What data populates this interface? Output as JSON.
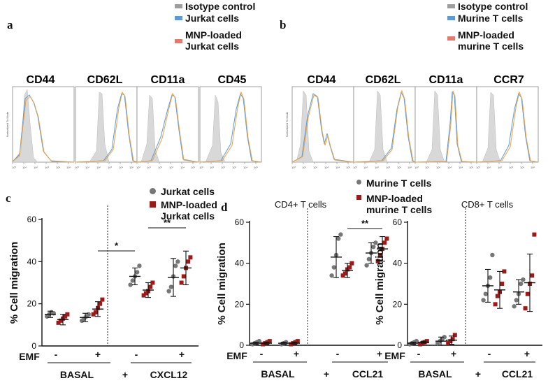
{
  "panel_a": {
    "letter": "a",
    "legend": {
      "isotype": "Isotype control",
      "cells": "Jurkat cells",
      "mnp_line1": "MNP-loaded",
      "mnp_line2": "Jurkat cells"
    },
    "markers": [
      "CD44",
      "CD62L",
      "CD11a",
      "CD45"
    ],
    "y_axis_label": "Normalized To Mode"
  },
  "panel_b": {
    "letter": "b",
    "legend": {
      "isotype": "Isotype control",
      "cells": "Murine T cells",
      "mnp_line1": "MNP-loaded",
      "mnp_line2": "murine T cells"
    },
    "markers": [
      "CD44",
      "CD62L",
      "CD11a",
      "CCR7"
    ],
    "y_axis_label": "Normalized To Mode"
  },
  "colors": {
    "isotype": "#9e9e9e",
    "cells": "#5b9bd5",
    "mnp": "#e07b6f",
    "orange_line": "#e8a14a",
    "circle_marker": "#777777",
    "square_marker": "#9b1b1b"
  },
  "panel_c": {
    "letter": "c",
    "legend": {
      "circle": "Jurkat cells",
      "square_line1": "MNP-loaded",
      "square_line2": "Jurkat cells"
    }
  },
  "panel_d": {
    "letter": "d",
    "legend": {
      "circle": "Murine T cells",
      "square_line1": "MNP-loaded",
      "square_line2": "murine T cells"
    },
    "titles": [
      "CD4+ T cells",
      "CD8+ T cells"
    ]
  },
  "chart_data": [
    {
      "id": "c",
      "type": "scatter",
      "title": "",
      "ylabel": "% Cell migration",
      "ylim": [
        0,
        60
      ],
      "yticks": [
        0,
        20,
        40,
        60
      ],
      "emf_label": "EMF",
      "groups": [
        "BASAL",
        "CXCL12"
      ],
      "group_prefix": [
        "",
        "+"
      ],
      "emf_signs": [
        "-",
        "+",
        "-",
        "+"
      ],
      "significance": [
        {
          "from": 4,
          "to": 5,
          "label": "*"
        },
        {
          "from": 6,
          "to": 8,
          "label": "**"
        }
      ],
      "series": [
        {
          "name": "Jurkat cells",
          "marker": "circle",
          "positions": [
            1,
            3,
            5,
            7
          ],
          "means": [
            15,
            13.5,
            33,
            32.5
          ],
          "errors": [
            1.5,
            2,
            4,
            9
          ],
          "points": [
            [
              14,
              15,
              16,
              15.5
            ],
            [
              12,
              13,
              14,
              15
            ],
            [
              29,
              31,
              33,
              35,
              38
            ],
            [
              26,
              28,
              33,
              38,
              40
            ]
          ]
        },
        {
          "name": "MNP-loaded Jurkat cells",
          "marker": "square",
          "positions": [
            2,
            4,
            6,
            8
          ],
          "means": [
            12.5,
            17.5,
            26.5,
            37
          ],
          "errors": [
            2.5,
            3.5,
            3.5,
            8
          ],
          "points": [
            [
              11,
              12,
              13,
              14,
              15
            ],
            [
              15,
              16,
              18,
              20,
              22
            ],
            [
              24,
              25,
              26,
              28,
              30
            ],
            [
              30,
              33,
              37,
              40,
              42
            ]
          ]
        }
      ]
    },
    {
      "id": "d1",
      "type": "scatter",
      "title": "CD4+ T cells",
      "ylabel": "% Cell migration",
      "ylim": [
        0,
        60
      ],
      "yticks": [
        0,
        20,
        40,
        60
      ],
      "emf_label": "EMF",
      "groups": [
        "BASAL",
        "CCL21"
      ],
      "group_prefix": [
        "",
        "+"
      ],
      "emf_signs": [
        "-",
        "+",
        "-",
        "+"
      ],
      "significance": [
        {
          "from": 6,
          "to": 8,
          "label": "**"
        }
      ],
      "series": [
        {
          "name": "Murine T cells",
          "marker": "circle",
          "positions": [
            1,
            3,
            5,
            7
          ],
          "means": [
            1,
            1,
            43,
            45
          ],
          "errors": [
            0.5,
            0.5,
            10,
            5
          ],
          "points": [
            [
              0.5,
              1,
              1.5,
              2
            ],
            [
              0.5,
              1,
              1.5
            ],
            [
              34,
              38,
              44,
              52,
              54
            ],
            [
              39,
              42,
              45,
              48,
              50
            ]
          ]
        },
        {
          "name": "MNP-loaded murine T cells",
          "marker": "square",
          "positions": [
            2,
            4,
            6,
            8
          ],
          "means": [
            1,
            1,
            36.5,
            47
          ],
          "errors": [
            0.5,
            0.5,
            3.5,
            6
          ],
          "points": [
            [
              0.5,
              1,
              1.5,
              2
            ],
            [
              0.5,
              1,
              1.5,
              2
            ],
            [
              34,
              35,
              37,
              38,
              40
            ],
            [
              41,
              44,
              47,
              50,
              52
            ]
          ]
        }
      ]
    },
    {
      "id": "d2",
      "type": "scatter",
      "title": "CD8+ T cells",
      "ylabel": "% Cell migration",
      "ylim": [
        0,
        60
      ],
      "yticks": [
        0,
        20,
        40,
        60
      ],
      "emf_label": "EMF",
      "groups": [
        "BASAL",
        "CCL21"
      ],
      "group_prefix": [
        "",
        "+"
      ],
      "emf_signs": [
        "-",
        "+",
        "-",
        "+"
      ],
      "significance": [],
      "series": [
        {
          "name": "Murine T cells",
          "marker": "circle",
          "positions": [
            1,
            3,
            5,
            7
          ],
          "means": [
            1,
            2,
            29,
            26
          ],
          "errors": [
            0.5,
            2,
            8,
            6
          ],
          "points": [
            [
              0.5,
              1,
              1.5,
              2
            ],
            [
              1,
              2,
              3,
              4
            ],
            [
              22,
              25,
              29,
              33,
              44
            ],
            [
              19,
              22,
              25,
              30,
              32
            ]
          ]
        },
        {
          "name": "MNP-loaded murine T cells",
          "marker": "square",
          "positions": [
            2,
            4,
            6,
            8
          ],
          "means": [
            1.5,
            2.5,
            27,
            30.5
          ],
          "errors": [
            0.5,
            2,
            9,
            14
          ],
          "points": [
            [
              0.5,
              1,
              1.5,
              2
            ],
            [
              1,
              2,
              3,
              5
            ],
            [
              20,
              24,
              26,
              30,
              36
            ],
            [
              18,
              25,
              30,
              34,
              54
            ]
          ]
        }
      ]
    }
  ]
}
